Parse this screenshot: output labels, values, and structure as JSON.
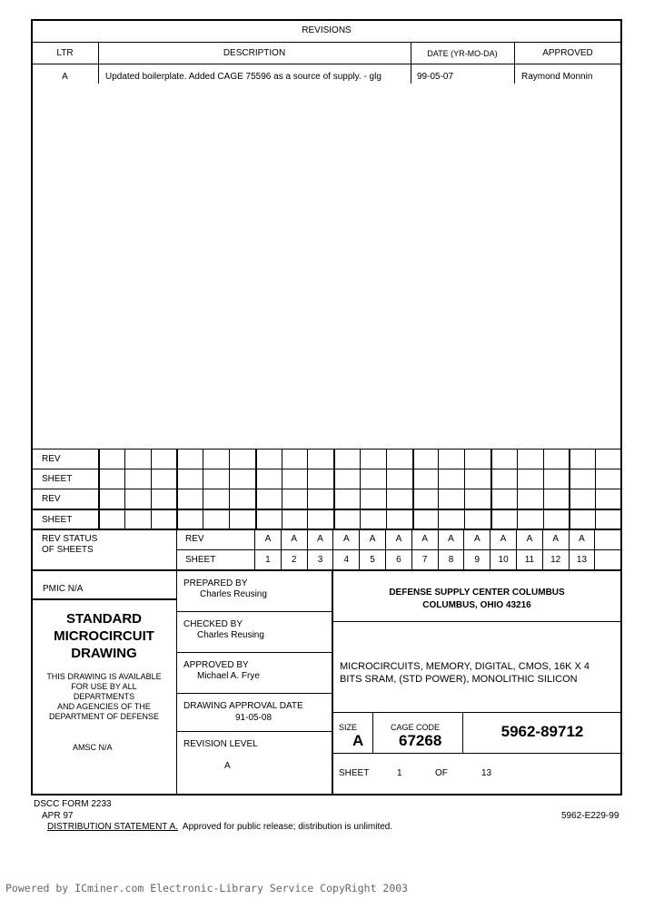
{
  "revisions": {
    "title": "REVISIONS",
    "headers": {
      "ltr": "LTR",
      "description": "DESCRIPTION",
      "date": "DATE (YR-MO-DA)",
      "approved": "APPROVED"
    },
    "rows": [
      {
        "ltr": "A",
        "description": "Updated boilerplate.  Added CAGE 75596 as a source of supply. - glg",
        "date": "99-05-07",
        "approved": "Raymond Monnin"
      }
    ]
  },
  "rev_grid": {
    "labels": [
      "REV",
      "SHEET",
      "REV",
      "SHEET"
    ]
  },
  "rev_status": {
    "label": "REV STATUS\nOF SHEETS",
    "rev_label": "REV",
    "sheet_label": "SHEET",
    "revs": [
      "A",
      "A",
      "A",
      "A",
      "A",
      "A",
      "A",
      "A",
      "A",
      "A",
      "A",
      "A",
      "A"
    ],
    "sheets": [
      "1",
      "2",
      "3",
      "4",
      "5",
      "6",
      "7",
      "8",
      "9",
      "10",
      "11",
      "12",
      "13"
    ]
  },
  "title_block": {
    "pmic": "PMIC N/A",
    "standard": "STANDARD\nMICROCIRCUIT\nDRAWING",
    "availability": "THIS DRAWING IS AVAILABLE\nFOR USE BY ALL\nDEPARTMENTS\nAND AGENCIES OF THE\nDEPARTMENT OF DEFENSE",
    "amsc": "AMSC N/A",
    "prepared_label": "PREPARED BY",
    "prepared_by": "Charles Reusing",
    "checked_label": "CHECKED BY",
    "checked_by": "Charles Reusing",
    "approved_label": "APPROVED BY",
    "approved_by": "Michael A. Frye",
    "approval_date_label": "DRAWING APPROVAL DATE",
    "approval_date": "91-05-08",
    "revision_level_label": "REVISION LEVEL",
    "revision_level": "A",
    "agency": "DEFENSE SUPPLY CENTER COLUMBUS",
    "agency_address": "COLUMBUS, OHIO  43216",
    "title": "MICROCIRCUITS, MEMORY, DIGITAL, CMOS, 16K X 4\nBITS SRAM, (STD POWER), MONOLITHIC SILICON",
    "size_label": "SIZE",
    "size": "A",
    "cage_label": "CAGE CODE",
    "cage": "67268",
    "drawing_number": "5962-89712",
    "sheet_label": "SHEET",
    "sheet": "1",
    "of_label": "OF",
    "total_sheets": "13"
  },
  "footer": {
    "form": "DSCC FORM 2233",
    "form_date": "APR  97",
    "doc_code": "5962-E229-99",
    "distribution_label": "DISTRIBUTION STATEMENT A.",
    "distribution_text": "  Approved for public release; distribution is unlimited.",
    "watermark": "Powered by ICminer.com Electronic-Library Service CopyRight 2003"
  }
}
